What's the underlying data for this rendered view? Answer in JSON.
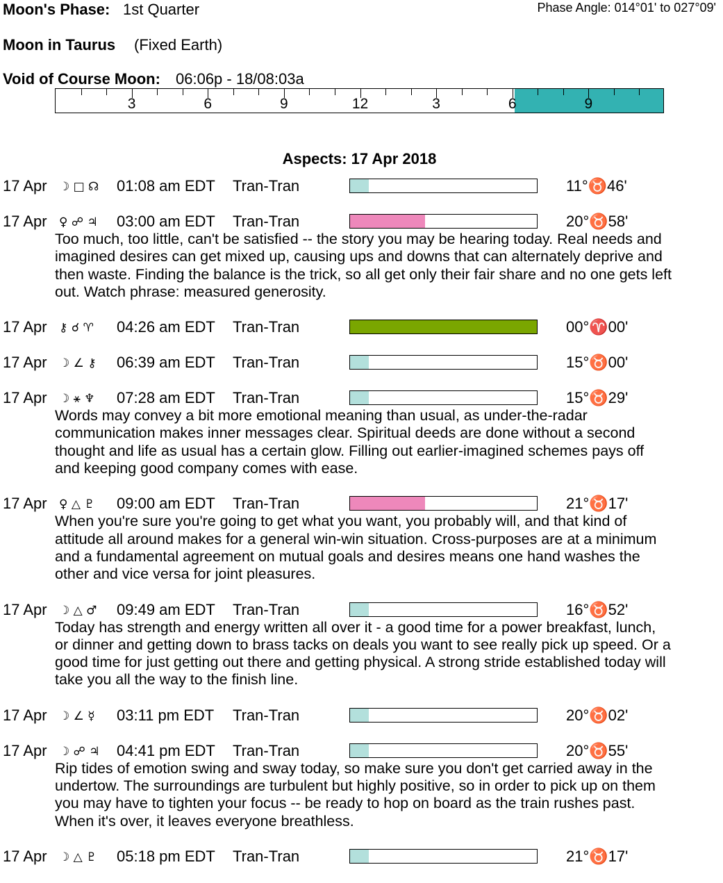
{
  "header": {
    "phase_label": "Moon's Phase:",
    "phase_value": "1st Quarter",
    "phase_angle": "Phase Angle:  014°01' to 027°09'",
    "moon_sign_label": "Moon in Taurus",
    "moon_sign_detail": "(Fixed Earth)",
    "voc_label": "Void of Course Moon:",
    "voc_value": "06:06p - 18/08:03a"
  },
  "timeline": {
    "labels": [
      "3",
      "6",
      "9",
      "12",
      "3",
      "6",
      "9"
    ],
    "label_hours": [
      3,
      6,
      9,
      12,
      15,
      18,
      21
    ],
    "hours_total": 24,
    "void_start_hour": 18.1,
    "void_end_hour": 24,
    "void_color": "#33b2b2"
  },
  "aspects_title": "Aspects: 17 Apr 2018",
  "colors": {
    "light_teal": "#b3e0dc",
    "pink": "#ee88bb",
    "green": "#7aa600"
  },
  "aspects": [
    {
      "date": "17 Apr",
      "glyphs": "☽ □ ☊",
      "time": "01:08 am EDT",
      "type": "Tran-Tran",
      "strength": 0.1,
      "color": "#b3e0dc",
      "position": "11°♉46'",
      "desc": []
    },
    {
      "date": "17 Apr",
      "glyphs": "♀ ☍ ♃",
      "time": "03:00 am EDT",
      "type": "Tran-Tran",
      "strength": 0.4,
      "color": "#ee88bb",
      "position": "20°♉58'",
      "desc": [
        "Too much, too little, can't be satisfied -- the story you may be hearing today. Real needs and",
        "imagined desires can get mixed up, causing ups and downs that can alternately deprive and",
        "then waste. Finding the balance is the trick, so all get only their fair share and no one gets left",
        "out. Watch phrase: measured generosity."
      ]
    },
    {
      "date": "17 Apr",
      "glyphs": "⚷ ☌ ♈",
      "time": "04:26 am EDT",
      "type": "Tran-Tran",
      "strength": 1,
      "color": "#7aa600",
      "position": "00°♈00'",
      "desc": []
    },
    {
      "date": "17 Apr",
      "glyphs": "☽ ∠ ⚷",
      "time": "06:39 am EDT",
      "type": "Tran-Tran",
      "strength": 0.1,
      "color": "#b3e0dc",
      "position": "15°♉00'",
      "desc": []
    },
    {
      "date": "17 Apr",
      "glyphs": "☽ ⚹ ♆",
      "time": "07:28 am EDT",
      "type": "Tran-Tran",
      "strength": 0.1,
      "color": "#b3e0dc",
      "position": "15°♉29'",
      "desc": [
        "Words may convey a bit more emotional meaning than usual, as under-the-radar",
        "communication makes inner messages clear. Spiritual deeds are done without a second",
        "thought and life as usual has a certain glow. Filling out earlier-imagined schemes pays off",
        "and keeping good company comes with ease."
      ]
    },
    {
      "date": "17 Apr",
      "glyphs": "♀ △ ♇",
      "time": "09:00 am EDT",
      "type": "Tran-Tran",
      "strength": 0.4,
      "color": "#ee88bb",
      "position": "21°♉17'",
      "desc": [
        "When you're sure you're going to get what you want, you probably will, and that kind of",
        "attitude all around makes for a general win-win situation. Cross-purposes are at a minimum",
        "and a fundamental agreement on mutual goals and desires means one hand washes the",
        "other and vice versa for joint pleasures."
      ]
    },
    {
      "date": "17 Apr",
      "glyphs": "☽ △ ♂",
      "time": "09:49 am EDT",
      "type": "Tran-Tran",
      "strength": 0.1,
      "color": "#b3e0dc",
      "position": "16°♉52'",
      "desc": [
        "Today has strength and energy written all over it - a good time for a power breakfast, lunch,",
        "or dinner and getting down to brass tacks on deals you want to see really pick up speed. Or a",
        "good time for just getting out there and getting physical. A strong stride established today will",
        "take you all the way to the finish line."
      ]
    },
    {
      "date": "17 Apr",
      "glyphs": "☽ ∠ ☿",
      "time": "03:11 pm EDT",
      "type": "Tran-Tran",
      "strength": 0.1,
      "color": "#b3e0dc",
      "position": "20°♉02'",
      "desc": []
    },
    {
      "date": "17 Apr",
      "glyphs": "☽ ☍ ♃",
      "time": "04:41 pm EDT",
      "type": "Tran-Tran",
      "strength": 0.1,
      "color": "#b3e0dc",
      "position": "20°♉55'",
      "desc": [
        "Rip tides of emotion swing and sway today, so make sure you don't get carried away in the",
        "undertow. The surroundings are turbulent but highly positive, so in order to pick up on them",
        "you may have to tighten your focus -- be ready to hop on board as the train rushes past.",
        "When it's over, it leaves everyone breathless."
      ]
    },
    {
      "date": "17 Apr",
      "glyphs": "☽ △ ♇",
      "time": "05:18 pm EDT",
      "type": "Tran-Tran",
      "strength": 0.1,
      "color": "#b3e0dc",
      "position": "21°♉17'",
      "desc": []
    }
  ]
}
